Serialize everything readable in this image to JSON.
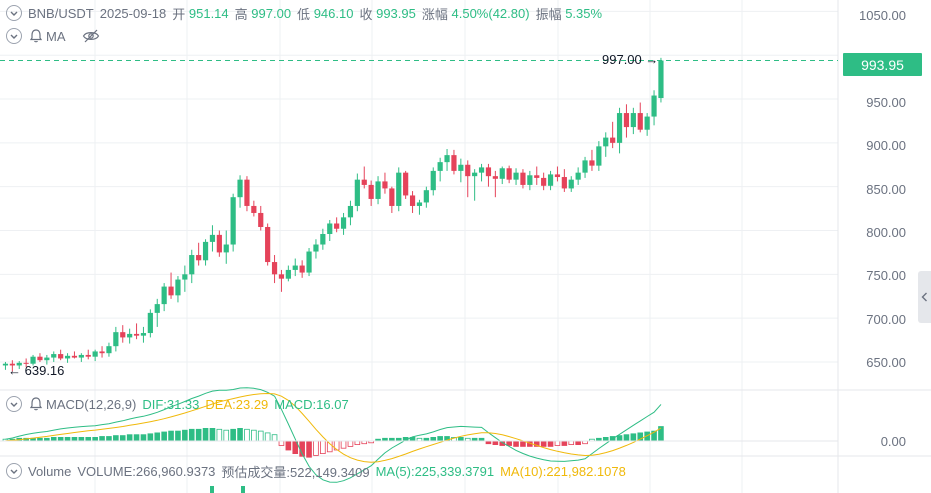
{
  "header": {
    "symbol": "BNB/USDT",
    "date": "2025-09-18",
    "open_label": "开",
    "open_value": "951.14",
    "high_label": "高",
    "high_value": "997.00",
    "low_label": "低",
    "low_value": "946.10",
    "close_label": "收",
    "close_value": "993.95",
    "change_label": "涨幅",
    "change_value": "4.50%(42.80)",
    "amplitude_label": "振幅",
    "amplitude_value": "5.35%"
  },
  "ma_row": {
    "label": "MA"
  },
  "macd_row": {
    "label": "MACD(12,26,9)",
    "dif": "DIF:31.33",
    "dea": "DEA:23.29",
    "macd": "MACD:16.07"
  },
  "volume_row": {
    "label": "Volume",
    "volume": "VOLUME:266,960.9373",
    "estimated": "预估成交量:522,149.3409",
    "ma5": "MA(5):225,339.3791",
    "ma10": "MA(10):221,982.1078"
  },
  "price_axis_labels": [
    "1050.00",
    "1000.00",
    "950.00",
    "900.00",
    "850.00",
    "800.00",
    "750.00",
    "700.00",
    "650.00"
  ],
  "macd_axis_label": "0.00",
  "current_price": "993.95",
  "annotations": {
    "high": "997.00",
    "low": "639.16"
  },
  "colors": {
    "up": "#2ebd85",
    "down": "#e5435a",
    "dif": "#2ebd85",
    "dea": "#f0b90b",
    "grid": "#eef0f3",
    "text": "#6b7280"
  },
  "chart_data": {
    "type": "candlestick",
    "ylim": [
      618,
      1063
    ],
    "grid": true,
    "ohlc": [
      [
        646,
        650,
        641,
        648
      ],
      [
        648,
        652,
        639.16,
        646
      ],
      [
        646,
        651,
        642,
        649
      ],
      [
        649,
        654,
        644,
        648
      ],
      [
        648,
        658,
        646,
        656
      ],
      [
        656,
        660,
        650,
        652
      ],
      [
        652,
        658,
        647,
        655
      ],
      [
        655,
        662,
        650,
        659
      ],
      [
        659,
        664,
        652,
        654
      ],
      [
        654,
        660,
        649,
        657
      ],
      [
        657,
        662,
        654,
        655
      ],
      [
        655,
        660,
        650,
        658
      ],
      [
        658,
        664,
        653,
        656
      ],
      [
        656,
        664,
        651,
        662
      ],
      [
        662,
        668,
        655,
        660
      ],
      [
        660,
        672,
        656,
        668
      ],
      [
        668,
        690,
        662,
        684
      ],
      [
        684,
        692,
        672,
        678
      ],
      [
        678,
        688,
        671,
        682
      ],
      [
        682,
        694,
        676,
        680
      ],
      [
        680,
        690,
        672,
        683
      ],
      [
        683,
        710,
        678,
        706
      ],
      [
        706,
        722,
        690,
        716
      ],
      [
        716,
        740,
        708,
        736
      ],
      [
        736,
        752,
        722,
        726
      ],
      [
        726,
        748,
        718,
        744
      ],
      [
        744,
        760,
        730,
        750
      ],
      [
        750,
        778,
        740,
        772
      ],
      [
        772,
        786,
        760,
        766
      ],
      [
        766,
        790,
        760,
        787
      ],
      [
        787,
        806,
        776,
        795
      ],
      [
        795,
        800,
        770,
        775
      ],
      [
        775,
        800,
        762,
        784
      ],
      [
        784,
        842,
        776,
        838
      ],
      [
        838,
        863,
        826,
        858
      ],
      [
        858,
        862,
        822,
        828
      ],
      [
        828,
        834,
        816,
        820
      ],
      [
        820,
        828,
        800,
        804
      ],
      [
        804,
        808,
        760,
        764
      ],
      [
        764,
        772,
        740,
        750
      ],
      [
        750,
        755,
        730,
        745
      ],
      [
        745,
        760,
        742,
        755
      ],
      [
        755,
        768,
        748,
        760
      ],
      [
        760,
        766,
        746,
        752
      ],
      [
        752,
        780,
        748,
        776
      ],
      [
        776,
        790,
        768,
        784
      ],
      [
        784,
        802,
        778,
        796
      ],
      [
        796,
        812,
        788,
        808
      ],
      [
        808,
        815,
        798,
        802
      ],
      [
        802,
        820,
        795,
        815
      ],
      [
        815,
        834,
        806,
        828
      ],
      [
        828,
        865,
        822,
        858
      ],
      [
        858,
        873,
        848,
        852
      ],
      [
        852,
        857,
        828,
        836
      ],
      [
        836,
        862,
        830,
        856
      ],
      [
        856,
        866,
        842,
        848
      ],
      [
        848,
        850,
        820,
        828
      ],
      [
        828,
        872,
        822,
        866
      ],
      [
        866,
        868,
        836,
        840
      ],
      [
        840,
        845,
        820,
        828
      ],
      [
        828,
        835,
        818,
        832
      ],
      [
        832,
        850,
        826,
        846
      ],
      [
        846,
        872,
        840,
        868
      ],
      [
        868,
        883,
        856,
        878
      ],
      [
        878,
        893,
        868,
        886
      ],
      [
        886,
        892,
        864,
        868
      ],
      [
        868,
        882,
        855,
        875
      ],
      [
        875,
        880,
        838,
        862
      ],
      [
        862,
        870,
        834,
        866
      ],
      [
        866,
        876,
        856,
        872
      ],
      [
        872,
        876,
        850,
        862
      ],
      [
        862,
        868,
        838,
        859
      ],
      [
        859,
        873,
        853,
        871
      ],
      [
        871,
        874,
        854,
        858
      ],
      [
        858,
        871,
        852,
        866
      ],
      [
        866,
        870,
        848,
        852
      ],
      [
        852,
        868,
        846,
        863
      ],
      [
        863,
        873,
        852,
        860
      ],
      [
        860,
        866,
        846,
        851
      ],
      [
        851,
        868,
        846,
        864
      ],
      [
        864,
        873,
        856,
        861
      ],
      [
        861,
        870,
        844,
        848
      ],
      [
        848,
        862,
        844,
        858
      ],
      [
        858,
        872,
        852,
        866
      ],
      [
        866,
        884,
        860,
        880
      ],
      [
        880,
        892,
        868,
        874
      ],
      [
        874,
        902,
        868,
        896
      ],
      [
        896,
        912,
        884,
        906
      ],
      [
        906,
        924,
        894,
        900
      ],
      [
        900,
        940,
        888,
        934
      ],
      [
        934,
        944,
        906,
        918
      ],
      [
        918,
        940,
        910,
        934
      ],
      [
        934,
        946,
        912,
        915
      ],
      [
        915,
        934,
        908,
        930
      ],
      [
        930,
        960,
        920,
        954
      ],
      [
        951.14,
        997,
        946.1,
        993.95
      ]
    ],
    "macd": {
      "dif_range": [
        -28,
        34
      ],
      "dea_range": [
        -20,
        24
      ],
      "hist": [
        2,
        2,
        3,
        3,
        3,
        3,
        3,
        4,
        4,
        4,
        4,
        4,
        4,
        4,
        5,
        5,
        6,
        6,
        7,
        7,
        7,
        8,
        9,
        10,
        11,
        11,
        12,
        13,
        13,
        14,
        14,
        13,
        12,
        13,
        14,
        13,
        12,
        11,
        9,
        7,
        -5,
        -10,
        -14,
        -17,
        -18,
        -16,
        -14,
        -12,
        -10,
        -8,
        -6,
        -4,
        -3,
        -2,
        2,
        3,
        3,
        3,
        4,
        4,
        3,
        3,
        4,
        5,
        5,
        4,
        4,
        3,
        3,
        3,
        -3,
        -4,
        -5,
        -5,
        -6,
        -6,
        -6,
        -6,
        -6,
        -6,
        -5,
        -5,
        -4,
        -4,
        -3,
        2,
        3,
        4,
        5,
        6,
        7,
        8,
        9,
        10,
        11,
        16.07
      ]
    }
  }
}
